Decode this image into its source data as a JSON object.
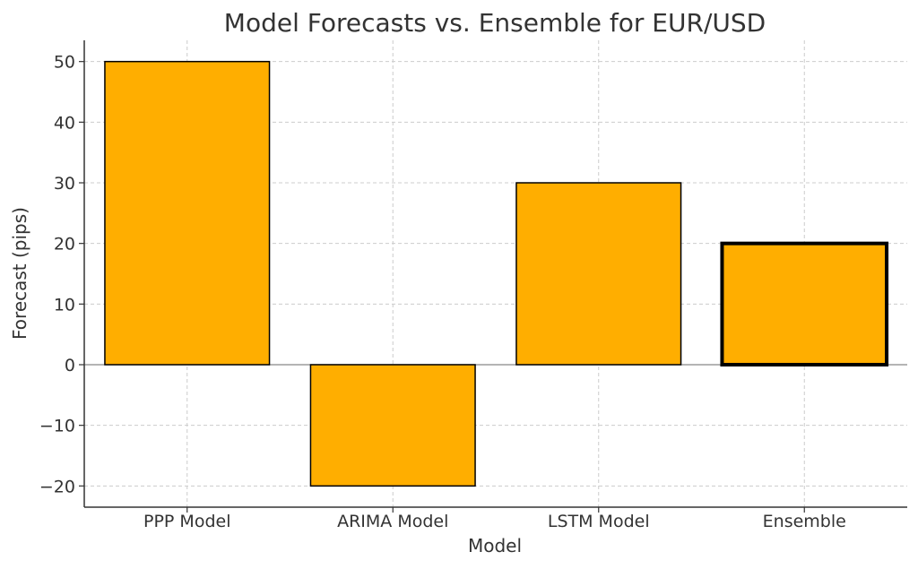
{
  "chart_data": {
    "type": "bar",
    "title": "Model Forecasts vs. Ensemble for EUR/USD",
    "xlabel": "Model",
    "ylabel": "Forecast (pips)",
    "categories": [
      "PPP Model",
      "ARIMA Model",
      "LSTM Model",
      "Ensemble"
    ],
    "values": [
      50,
      -20,
      30,
      20
    ],
    "ylim": [
      -23.5,
      53.5
    ],
    "yticks": [
      50,
      40,
      30,
      20,
      10,
      0,
      -10,
      -20
    ],
    "ytick_labels": [
      "50",
      "40",
      "30",
      "20",
      "10",
      "0",
      "−10",
      "−20"
    ],
    "grid": true,
    "highlight_category": "Ensemble",
    "colors": {
      "bar": "#FFAE00",
      "edge": "#000000",
      "grid": "#cccccc",
      "zero_line": "#888888",
      "text": "#333333"
    }
  }
}
